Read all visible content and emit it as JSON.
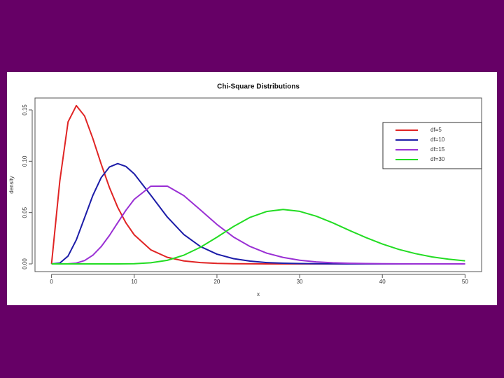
{
  "chart_data": {
    "type": "line",
    "title": "Chi-Square Distributions",
    "xlabel": "x",
    "ylabel": "density",
    "x": [
      0,
      1,
      2,
      3,
      4,
      5,
      6,
      7,
      8,
      9,
      10,
      12,
      14,
      16,
      18,
      20,
      22,
      24,
      26,
      28,
      30,
      32,
      34,
      36,
      38,
      40,
      42,
      44,
      46,
      48,
      50
    ],
    "series": [
      {
        "name": "df=5",
        "color": "#e02424",
        "values": [
          0,
          0.0807,
          0.1384,
          0.1542,
          0.144,
          0.122,
          0.0973,
          0.0744,
          0.0551,
          0.0399,
          0.0283,
          0.0137,
          0.0064,
          0.0029,
          0.0013,
          0.0005,
          0.0002,
          0.0001,
          0,
          0,
          0,
          0,
          0,
          0,
          0,
          0,
          0,
          0,
          0,
          0,
          0
        ]
      },
      {
        "name": "df=10",
        "color": "#1c1ca8",
        "values": [
          0,
          0.0008,
          0.0077,
          0.0235,
          0.0451,
          0.0668,
          0.084,
          0.0944,
          0.0977,
          0.0949,
          0.0877,
          0.0669,
          0.0456,
          0.0286,
          0.0169,
          0.0095,
          0.0051,
          0.0027,
          0.0013,
          0.0007,
          0.0003,
          0.0002,
          0.0001,
          0,
          0,
          0,
          0,
          0,
          0,
          0,
          0
        ]
      },
      {
        "name": "df=15",
        "color": "#9a30d4",
        "values": [
          0,
          0,
          0.0001,
          0.0008,
          0.0033,
          0.0085,
          0.0168,
          0.0277,
          0.0401,
          0.0523,
          0.0629,
          0.0757,
          0.0758,
          0.0665,
          0.0526,
          0.0384,
          0.0262,
          0.017,
          0.0105,
          0.0063,
          0.0036,
          0.002,
          0.0011,
          0.0006,
          0.0003,
          0.0002,
          0.0001,
          0,
          0,
          0,
          0
        ]
      },
      {
        "name": "df=30",
        "color": "#22dc22",
        "values": [
          0,
          0,
          0,
          0,
          0,
          0,
          0,
          0,
          0,
          0.0001,
          0.0002,
          0.0011,
          0.0035,
          0.0085,
          0.0162,
          0.026,
          0.0364,
          0.0453,
          0.051,
          0.053,
          0.0512,
          0.0465,
          0.04,
          0.0327,
          0.0257,
          0.0194,
          0.0141,
          0.01,
          0.0068,
          0.0046,
          0.003
        ]
      }
    ],
    "xlim": [
      -2,
      52
    ],
    "ylim": [
      -0.0075,
      0.1616
    ],
    "xticks": [
      0,
      10,
      20,
      30,
      40,
      50
    ],
    "yticks": [
      {
        "value": 0,
        "label": "0.00"
      },
      {
        "value": 0.05,
        "label": "0.05"
      },
      {
        "value": 0.1,
        "label": "0.10"
      },
      {
        "value": 0.15,
        "label": "0.15"
      }
    ],
    "legend": "top-right"
  }
}
